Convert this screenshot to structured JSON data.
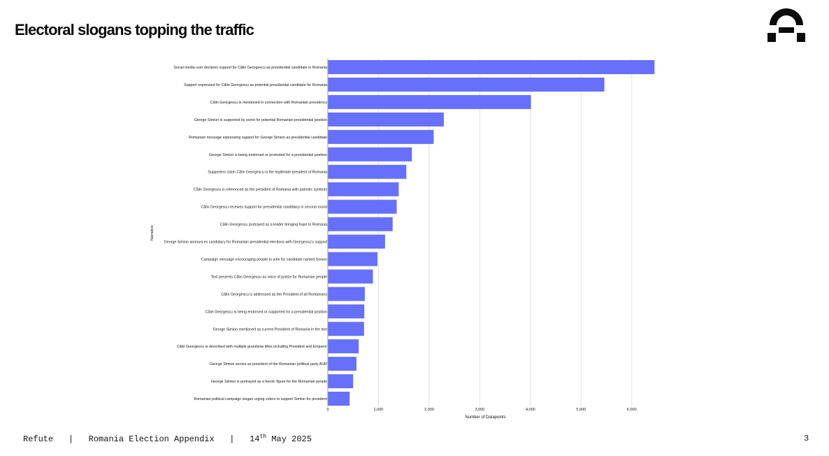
{
  "header": {
    "title": "Electoral slogans topping the traffic",
    "logo_icon": "refute-logo-icon"
  },
  "footer": {
    "brand": "Refute",
    "separator": "|",
    "document": "Romania Election Appendix",
    "date_day": "14",
    "date_suffix": "th",
    "date_rest": "May 2025",
    "page_number": "3"
  },
  "colors": {
    "bar": "#6670fb",
    "grid": "#e2e2e2",
    "text": "#111111"
  },
  "chart_data": {
    "type": "bar",
    "orientation": "horizontal",
    "xlabel": "Number of Datapoints",
    "ylabel": "Narrative",
    "xlim": [
      0,
      6500
    ],
    "xticks": [
      0,
      1000,
      2000,
      3000,
      4000,
      5000,
      6000
    ],
    "xtick_labels": [
      "0",
      "1,000",
      "2,000",
      "3,000",
      "4,000",
      "5,000",
      "6,000"
    ],
    "grid": true,
    "categories": [
      "Social media user declares support for Călin Georgescu as presidential candidate in Romania",
      "Support expressed for Călin Georgescu as potential presidential candidate for Romania",
      "Călin Georgescu is mentioned in connection with Romanian presidency",
      "George Simion is supported by some for potential Romanian presidential position",
      "Romanian message expressing support for George Simion as presidential candidate",
      "George Simion is being endorsed or promoted for a presidential position",
      "Supporters claim Călin Georgescu is the legitimate president of Romania",
      "Călin Georgescu is referenced as the president of Romania with patriotic symbols",
      "Călin Georgescu receives support for presidential candidacy in second round",
      "Călin Georgescu portrayed as a leader bringing hope to Romania",
      "George Simion announces candidacy for Romanian presidential elections with Georgescu's support",
      "Campaign message encouraging people to vote for candidate named Simion",
      "Text presents Călin Georgescu as voice of justice for Romanian people",
      "Călin Georgescu is addressed as the President of all Romanians",
      "Călin Georgescu is being endorsed or supported for a presidential position",
      "George Simion mentioned as current President of Romania in the text",
      "Călin Georgescu is described with multiple grandiose titles including President and Emperor",
      "George Simion serves as president of the Romanian political party AUR",
      "George Simion is portrayed as a heroic figure for the Romanian people",
      "Romanian political campaign slogan urging voters to support Simion for president"
    ],
    "values": [
      6450,
      5460,
      4010,
      2290,
      2090,
      1660,
      1550,
      1400,
      1360,
      1280,
      1130,
      980,
      890,
      730,
      720,
      715,
      610,
      565,
      500,
      430
    ]
  }
}
